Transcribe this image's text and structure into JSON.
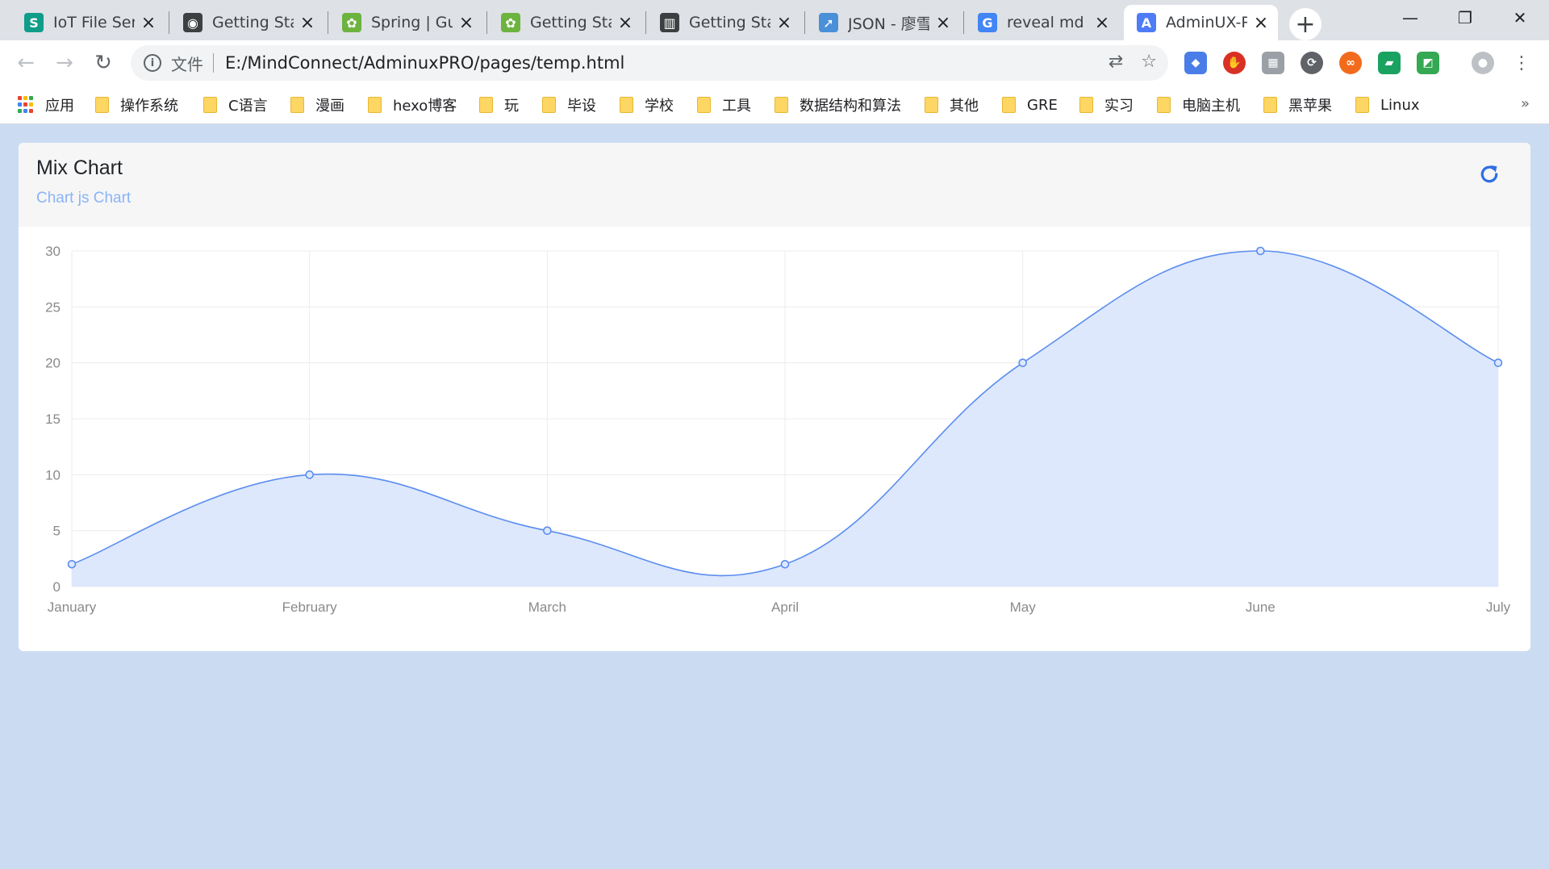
{
  "browser": {
    "tabs": [
      {
        "title": "IoT File Serv",
        "icon": "s-app-icon",
        "color": "#0f9d8a",
        "glyph": "S"
      },
      {
        "title": "Getting Star",
        "icon": "github-icon",
        "color": "#3c4043",
        "glyph": "◉"
      },
      {
        "title": "Spring | Gui",
        "icon": "spring-leaf-icon",
        "color": "#6db33f",
        "glyph": "✿"
      },
      {
        "title": "Getting Star",
        "icon": "spring-leaf-icon",
        "color": "#6db33f",
        "glyph": "✿"
      },
      {
        "title": "Getting Star",
        "icon": "book-icon",
        "color": "#3c4043",
        "glyph": "▥"
      },
      {
        "title": "JSON - 廖雪",
        "icon": "rocket-icon",
        "color": "#4a90d9",
        "glyph": "➚"
      },
      {
        "title": "reveal md p",
        "icon": "google-icon",
        "color": "#4285f4",
        "glyph": "G"
      },
      {
        "title": "AdminUX-P",
        "icon": "adminux-icon",
        "color": "#4e7cf6",
        "glyph": "A"
      }
    ],
    "address": {
      "label": "文件",
      "url": "E:/MindConnect/AdminuxPRO/pages/temp.html"
    },
    "bookmarks": {
      "apps_label": "应用",
      "folders": [
        "操作系统",
        "C语言",
        "漫画",
        "hexo博客",
        "玩",
        "毕设",
        "学校",
        "工具",
        "数据结构和算法",
        "其他",
        "GRE",
        "实习",
        "电脑主机",
        "黑苹果",
        "Linux"
      ],
      "more": "»"
    }
  },
  "card": {
    "title": "Mix Chart",
    "subtitle": "Chart js Chart"
  },
  "chart_data": {
    "type": "area",
    "categories": [
      "January",
      "February",
      "March",
      "April",
      "May",
      "June",
      "July"
    ],
    "values": [
      2,
      10,
      5,
      2,
      20,
      30,
      20
    ],
    "ylim": [
      0,
      30
    ],
    "yticks": [
      0,
      5,
      10,
      15,
      20,
      25,
      30
    ],
    "grid": true,
    "line_color": "#5b8def",
    "fill_color": "#dde8fc"
  }
}
